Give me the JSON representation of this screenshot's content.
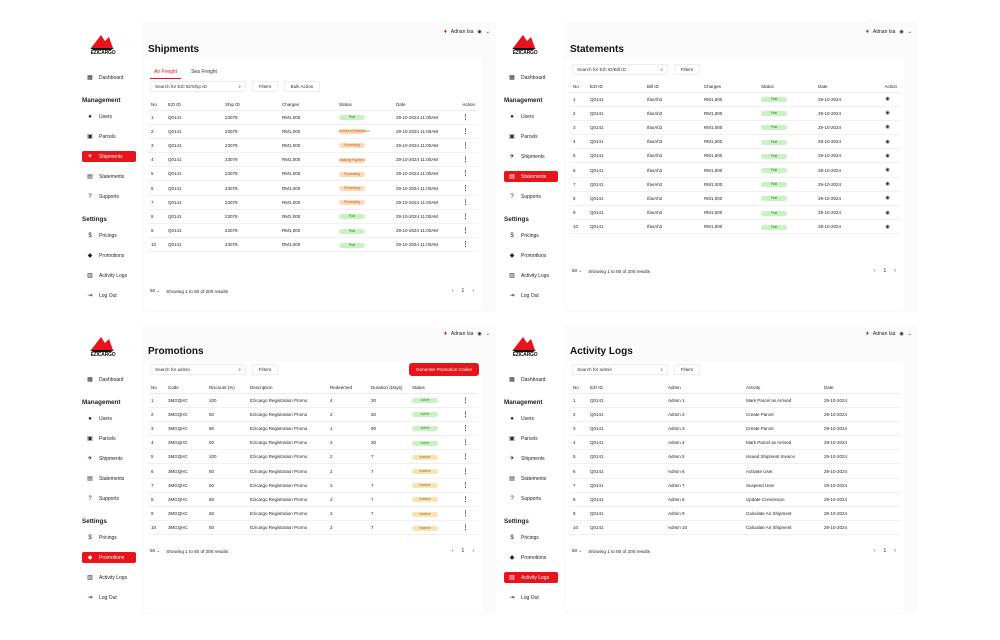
{
  "brand": {
    "name": "EZICARGO",
    "color": "#e8141b"
  },
  "user": {
    "name": "Adnan Isa"
  },
  "nav": {
    "dashboard": "Dashboard",
    "management_title": "Management",
    "users": "Users",
    "parcels": "Parcels",
    "shipments": "Shipments",
    "statements": "Statements",
    "supports": "Supports",
    "settings_title": "Settings",
    "pricings": "Pricings",
    "promotions": "Promotions",
    "activity_logs": "Activity Logs",
    "logout": "Log Out"
  },
  "footer": {
    "page_size": "50",
    "showing": "Showing 1 to 50 of 200 results",
    "page": "1"
  },
  "shipments": {
    "title": "Shipments",
    "tabs": [
      "Air Freight",
      "Sea Freight"
    ],
    "search_placeholder": "Search for EZI ID/Ship ID",
    "filters": "Filters",
    "bulk": "Bulk Action",
    "columns": [
      "No",
      "EZI ID",
      "Ship ID",
      "Charges",
      "Status",
      "Date",
      "Action"
    ],
    "rows": [
      {
        "no": "1",
        "ezi": "Q0141",
        "ship": "23079",
        "charges": "RM1,000",
        "status": "Paid",
        "tone": "green",
        "date": "29-10-2024 11:00AM"
      },
      {
        "no": "2",
        "ezi": "Q0141",
        "ship": "23079",
        "charges": "RM1,000",
        "status": "Arrived at Destination",
        "tone": "orange",
        "date": "29-10-2024 11:00AM"
      },
      {
        "no": "3",
        "ezi": "Q0141",
        "ship": "23079",
        "charges": "RM1,000",
        "status": "Processing",
        "tone": "orange",
        "date": "29-10-2024 11:00AM"
      },
      {
        "no": "4",
        "ezi": "Q0141",
        "ship": "23079",
        "charges": "RM1,000",
        "status": "Awaiting Payment",
        "tone": "orange",
        "date": "29-10-2024 11:00AM"
      },
      {
        "no": "5",
        "ezi": "Q0141",
        "ship": "23079",
        "charges": "RM1,000",
        "status": "Processing",
        "tone": "orange",
        "date": "29-10-2024 11:00AM"
      },
      {
        "no": "6",
        "ezi": "Q0141",
        "ship": "23079",
        "charges": "RM1,000",
        "status": "Processing",
        "tone": "orange",
        "date": "29-10-2024 11:00AM"
      },
      {
        "no": "7",
        "ezi": "Q0141",
        "ship": "23079",
        "charges": "RM1,000",
        "status": "Processing",
        "tone": "orange",
        "date": "29-10-2024 11:00AM"
      },
      {
        "no": "8",
        "ezi": "Q0141",
        "ship": "23079",
        "charges": "RM1,000",
        "status": "Paid",
        "tone": "green",
        "date": "29-10-2024 11:00AM"
      },
      {
        "no": "9",
        "ezi": "Q0141",
        "ship": "23079",
        "charges": "RM1,000",
        "status": "Paid",
        "tone": "green",
        "date": "29-10-2024 11:00AM"
      },
      {
        "no": "10",
        "ezi": "Q0141",
        "ship": "23079",
        "charges": "RM1,000",
        "status": "Paid",
        "tone": "green",
        "date": "29-10-2024 11:00AM"
      }
    ]
  },
  "statements": {
    "title": "Statements",
    "search_placeholder": "Search for EZI ID/Bill ID",
    "filters": "Filters",
    "columns": [
      "No",
      "EZI ID",
      "Bill ID",
      "Charges",
      "Status",
      "Date",
      "Action"
    ],
    "rows": [
      {
        "no": "1",
        "ezi": "Q0141",
        "bill": "IfasAh2",
        "charges": "RM1,000",
        "status": "Paid",
        "date": "29-10-2024"
      },
      {
        "no": "2",
        "ezi": "Q0141",
        "bill": "IfasAh2",
        "charges": "RM1,000",
        "status": "Paid",
        "date": "29-10-2024"
      },
      {
        "no": "3",
        "ezi": "Q0141",
        "bill": "IfasAh2",
        "charges": "RM1,000",
        "status": "Paid",
        "date": "29-10-2024"
      },
      {
        "no": "4",
        "ezi": "Q0141",
        "bill": "IfasAh2",
        "charges": "RM1,000",
        "status": "Paid",
        "date": "29-10-2024"
      },
      {
        "no": "5",
        "ezi": "Q0141",
        "bill": "IfasAh2",
        "charges": "RM1,000",
        "status": "Paid",
        "date": "29-10-2024"
      },
      {
        "no": "6",
        "ezi": "Q0141",
        "bill": "IfasAh2",
        "charges": "RM1,000",
        "status": "Paid",
        "date": "29-10-2024"
      },
      {
        "no": "7",
        "ezi": "Q0141",
        "bill": "IfasAh2",
        "charges": "RM1,000",
        "status": "Paid",
        "date": "29-10-2024"
      },
      {
        "no": "8",
        "ezi": "Q0141",
        "bill": "IfasAh2",
        "charges": "RM1,000",
        "status": "Paid",
        "date": "29-10-2024"
      },
      {
        "no": "9",
        "ezi": "Q0141",
        "bill": "IfasAh2",
        "charges": "RM1,000",
        "status": "Paid",
        "date": "29-10-2024"
      },
      {
        "no": "10",
        "ezi": "Q0141",
        "bill": "IfasAh2",
        "charges": "RM1,000",
        "status": "Paid",
        "date": "29-10-2024"
      }
    ]
  },
  "promotions": {
    "title": "Promotions",
    "search_placeholder": "Search for admin",
    "filters": "Filters",
    "generate": "Generate Promotion Codes",
    "columns": [
      "No",
      "Code",
      "Discount (%)",
      "Description",
      "Redeemed",
      "Duration (Days)",
      "Status"
    ],
    "rows": [
      {
        "no": "1",
        "code": "3MGQHC",
        "discount": "100",
        "desc": "Ezicargo Registration Promo",
        "redeemed": "4",
        "duration": "30",
        "status": "Active",
        "tone": "green"
      },
      {
        "no": "2",
        "code": "3MGQHC",
        "discount": "50",
        "desc": "Ezicargo Registration Promo",
        "redeemed": "2",
        "duration": "30",
        "status": "Active",
        "tone": "green"
      },
      {
        "no": "3",
        "code": "3MGQHC",
        "discount": "80",
        "desc": "Ezicargo Registration Promo",
        "redeemed": "1",
        "duration": "90",
        "status": "Active",
        "tone": "green"
      },
      {
        "no": "4",
        "code": "3MGQHC",
        "discount": "50",
        "desc": "Ezicargo Registration Promo",
        "redeemed": "3",
        "duration": "30",
        "status": "Active",
        "tone": "green"
      },
      {
        "no": "5",
        "code": "3MGQHC",
        "discount": "100",
        "desc": "Ezicargo Registration Promo",
        "redeemed": "2",
        "duration": "7",
        "status": "Inactive",
        "tone": "yellow"
      },
      {
        "no": "6",
        "code": "3MGQHC",
        "discount": "50",
        "desc": "Ezicargo Registration Promo",
        "redeemed": "2",
        "duration": "7",
        "status": "Inactive",
        "tone": "yellow"
      },
      {
        "no": "7",
        "code": "3MGQHC",
        "discount": "50",
        "desc": "Ezicargo Registration Promo",
        "redeemed": "2",
        "duration": "7",
        "status": "Inactive",
        "tone": "yellow"
      },
      {
        "no": "8",
        "code": "3MGQHC",
        "discount": "50",
        "desc": "Ezicargo Registration Promo",
        "redeemed": "2",
        "duration": "7",
        "status": "Inactive",
        "tone": "yellow"
      },
      {
        "no": "9",
        "code": "3MGQHC",
        "discount": "50",
        "desc": "Ezicargo Registration Promo",
        "redeemed": "2",
        "duration": "7",
        "status": "Inactive",
        "tone": "yellow"
      },
      {
        "no": "10",
        "code": "3MGQHC",
        "discount": "50",
        "desc": "Ezicargo Registration Promo",
        "redeemed": "2",
        "duration": "7",
        "status": "Inactive",
        "tone": "yellow"
      }
    ]
  },
  "activity": {
    "title": "Activity Logs",
    "search_placeholder": "Search for admin",
    "filters": "Filters",
    "columns": [
      "No",
      "EZI ID",
      "Admin",
      "Activity",
      "Date"
    ],
    "rows": [
      {
        "no": "1",
        "ezi": "Q0141",
        "admin": "Admin 1",
        "act": "Mark Parcel as Arrived",
        "date": "29-10-2024"
      },
      {
        "no": "2",
        "ezi": "Q0141",
        "admin": "Admin 2",
        "act": "Create Parcel",
        "date": "29-10-2024"
      },
      {
        "no": "3",
        "ezi": "Q0141",
        "admin": "Admin 3",
        "act": "Create Parcel",
        "date": "29-10-2024"
      },
      {
        "no": "4",
        "ezi": "Q0141",
        "admin": "Admin 4",
        "act": "Mark Parcel as Arrived",
        "date": "29-10-2024"
      },
      {
        "no": "5",
        "ezi": "Q0141",
        "admin": "Admin 5",
        "act": "Issued Shipment Invoice",
        "date": "29-10-2024"
      },
      {
        "no": "6",
        "ezi": "Q0141",
        "admin": "Admin 6",
        "act": "Activate User",
        "date": "29-10-2024"
      },
      {
        "no": "7",
        "ezi": "Q0141",
        "admin": "Admin 7",
        "act": "Suspend User",
        "date": "29-10-2024"
      },
      {
        "no": "8",
        "ezi": "Q0141",
        "admin": "Admin 8",
        "act": "Update Conversion",
        "date": "29-10-2024"
      },
      {
        "no": "9",
        "ezi": "Q0141",
        "admin": "Admin 9",
        "act": "Calculate Air Shipment",
        "date": "29-10-2024"
      },
      {
        "no": "10",
        "ezi": "Q0141",
        "admin": "Admin 10",
        "act": "Calculate Air Shipment",
        "date": "29-10-2024"
      }
    ]
  }
}
